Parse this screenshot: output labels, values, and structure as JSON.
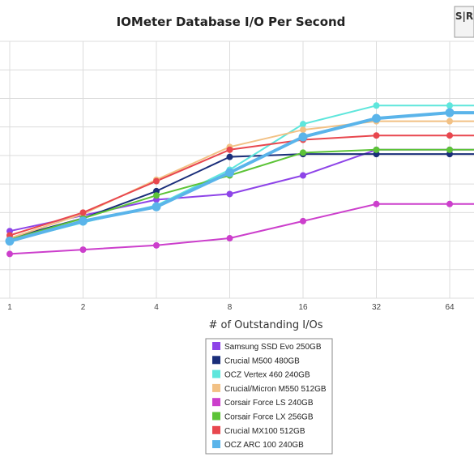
{
  "chart_data": {
    "type": "line",
    "title": "IOMeter Database I/O Per Second",
    "xlabel": "# of Outstanding I/Os",
    "ylabel": "",
    "x": [
      1,
      2,
      4,
      8,
      16,
      32,
      64
    ],
    "ylim": [
      0,
      9
    ],
    "grid": true,
    "legend_position": "bottom-center",
    "series": [
      {
        "name": "Samsung SSD Evo 250GB",
        "color": "#8e44e8",
        "values": [
          2.35,
          2.9,
          3.45,
          3.65,
          4.3,
          5.2,
          5.2
        ]
      },
      {
        "name": "Crucial M500 480GB",
        "color": "#1a2e7a",
        "values": [
          2.1,
          2.8,
          3.75,
          4.95,
          5.05,
          5.05,
          5.05
        ]
      },
      {
        "name": "OCZ Vertex 460 240GB",
        "color": "#5ee6dc",
        "values": [
          2.0,
          2.65,
          3.25,
          4.5,
          6.1,
          6.75,
          6.75
        ]
      },
      {
        "name": "Crucial/Micron M550 512GB",
        "color": "#f2c185",
        "values": [
          2.1,
          2.95,
          4.15,
          5.3,
          5.9,
          6.2,
          6.2
        ]
      },
      {
        "name": "Corsair Force LS 240GB",
        "color": "#cc3fcc",
        "values": [
          1.55,
          1.7,
          1.85,
          2.1,
          2.7,
          3.3,
          3.3
        ]
      },
      {
        "name": "Corsair Force LX 256GB",
        "color": "#5cc337",
        "values": [
          2.05,
          2.8,
          3.6,
          4.3,
          5.1,
          5.2,
          5.2
        ]
      },
      {
        "name": "Crucial MX100 512GB",
        "color": "#e8474e",
        "values": [
          2.2,
          3.0,
          4.1,
          5.2,
          5.55,
          5.7,
          5.7
        ]
      },
      {
        "name": "OCZ ARC 100 240GB",
        "color": "#5ab4ea",
        "values": [
          2.0,
          2.7,
          3.2,
          4.4,
          5.65,
          6.3,
          6.5
        ]
      }
    ]
  },
  "logo": {
    "text": "S|R"
  }
}
